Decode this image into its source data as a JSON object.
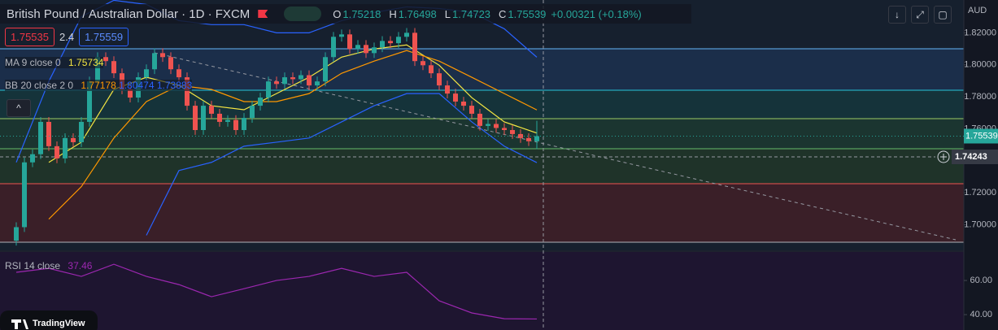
{
  "chart_data": {
    "type": "candlestick",
    "title": "British Pound / Australian Dollar · 1D · FXCM",
    "ohlc_labels": [
      "O",
      "H",
      "L",
      "C"
    ],
    "change": "+0.00321 (+0.18%)",
    "sell_price": 1.75535,
    "spread": 2.4,
    "buy_price": 1.75559,
    "currency": "AUD",
    "colors": {
      "up": "#26a69a",
      "down": "#ef5350"
    },
    "candles": {
      "open": [
        1.69,
        1.6985,
        1.739,
        1.7441,
        1.7643,
        1.7491,
        1.7415,
        1.7542,
        1.7516,
        1.7643,
        1.7896,
        1.8048,
        1.8023,
        1.7947,
        1.7846,
        1.7795,
        1.7922,
        1.7972,
        1.8073,
        1.8048,
        1.7972,
        1.7922,
        1.7744,
        1.7592,
        1.7744,
        1.7694,
        1.7643,
        1.7655,
        1.7592,
        1.7668,
        1.7744,
        1.7795,
        1.7896,
        1.788,
        1.7922,
        1.791,
        1.7935,
        1.7871,
        1.7896,
        1.8048,
        1.8175,
        1.819,
        1.8099,
        1.8124,
        1.8073,
        1.8109,
        1.8149,
        1.8135,
        1.8175,
        1.82,
        1.8023,
        1.7997,
        1.7947,
        1.7871,
        1.782,
        1.777,
        1.7744,
        1.7694,
        1.7618,
        1.763,
        1.7605,
        1.7592,
        1.7567,
        1.7542,
        1.75218
      ],
      "high": [
        1.7015,
        1.742,
        1.7471,
        1.7673,
        1.7673,
        1.7521,
        1.7572,
        1.7572,
        1.7673,
        1.7926,
        1.8078,
        1.8078,
        1.8053,
        1.7977,
        1.7876,
        1.7952,
        1.8002,
        1.8103,
        1.8103,
        1.8078,
        1.8002,
        1.7952,
        1.7774,
        1.7774,
        1.7774,
        1.7724,
        1.7685,
        1.7685,
        1.7698,
        1.7774,
        1.7825,
        1.7926,
        1.7926,
        1.7952,
        1.7952,
        1.7965,
        1.7965,
        1.7926,
        1.8078,
        1.8205,
        1.822,
        1.822,
        1.8154,
        1.8154,
        1.8139,
        1.8179,
        1.8179,
        1.8205,
        1.823,
        1.823,
        1.8053,
        1.8027,
        1.7977,
        1.7901,
        1.785,
        1.78,
        1.7774,
        1.7724,
        1.766,
        1.766,
        1.7635,
        1.7622,
        1.7597,
        1.7572,
        1.76498
      ],
      "low": [
        1.687,
        1.6955,
        1.736,
        1.7411,
        1.7461,
        1.7385,
        1.7385,
        1.7486,
        1.7486,
        1.7613,
        1.7866,
        1.7993,
        1.7917,
        1.7816,
        1.7765,
        1.7765,
        1.7892,
        1.7942,
        1.8018,
        1.7942,
        1.7892,
        1.7714,
        1.7562,
        1.7562,
        1.7664,
        1.7613,
        1.7613,
        1.7562,
        1.7562,
        1.7638,
        1.7714,
        1.7765,
        1.785,
        1.785,
        1.788,
        1.788,
        1.7841,
        1.7841,
        1.7866,
        1.8018,
        1.8145,
        1.8069,
        1.8069,
        1.8043,
        1.8043,
        1.8079,
        1.8105,
        1.8105,
        1.8145,
        1.7993,
        1.7967,
        1.7917,
        1.7841,
        1.779,
        1.774,
        1.7714,
        1.7664,
        1.7588,
        1.7588,
        1.7575,
        1.7562,
        1.7537,
        1.7512,
        1.7492,
        1.74723
      ],
      "close": [
        1.6985,
        1.739,
        1.7441,
        1.7643,
        1.7491,
        1.7415,
        1.7542,
        1.7516,
        1.7643,
        1.7896,
        1.8048,
        1.8023,
        1.7947,
        1.7846,
        1.7795,
        1.7922,
        1.7972,
        1.8073,
        1.8048,
        1.7972,
        1.7922,
        1.7744,
        1.7592,
        1.7744,
        1.7694,
        1.7643,
        1.7655,
        1.7592,
        1.7668,
        1.7744,
        1.7795,
        1.7896,
        1.788,
        1.7922,
        1.791,
        1.7935,
        1.7871,
        1.7896,
        1.8048,
        1.8175,
        1.819,
        1.8099,
        1.8124,
        1.8073,
        1.8109,
        1.8149,
        1.8135,
        1.8175,
        1.82,
        1.8023,
        1.7997,
        1.7947,
        1.7871,
        1.782,
        1.777,
        1.7744,
        1.7694,
        1.7618,
        1.763,
        1.7605,
        1.7592,
        1.7567,
        1.7542,
        1.7522,
        1.75539
      ]
    },
    "ylim": [
      1.684,
      1.8405
    ],
    "yticks": [
      {
        "value": 1.82,
        "label": "1.82000"
      },
      {
        "value": 1.8,
        "label": "1.80000"
      },
      {
        "value": 1.78,
        "label": "1.78000"
      },
      {
        "value": 1.76,
        "label": "1.76000"
      },
      {
        "value": 1.72,
        "label": "1.72000"
      },
      {
        "value": 1.7,
        "label": "1.70000"
      }
    ],
    "crosshair": 1.74243,
    "indicator_x": [
      0,
      4,
      8,
      12,
      16,
      20,
      24,
      28,
      32,
      36,
      40,
      44,
      48,
      52,
      56,
      60,
      64
    ],
    "indicators": [
      {
        "label": "MA 9 close 0",
        "series": [
          {
            "color": "#f5e642",
            "values": [
              null,
              1.739,
              1.7516,
              1.7846,
              1.7922,
              1.7871,
              1.7744,
              1.7719,
              1.782,
              1.7922,
              1.8048,
              1.8099,
              1.8124,
              1.7997,
              1.7795,
              1.7643,
              1.75734
            ]
          }
        ]
      },
      {
        "label": "BB 20 close 2 0",
        "series": [
          {
            "color": "#ff9800",
            "values": [
              null,
              1.7035,
              1.7238,
              1.7542,
              1.777,
              1.7871,
              1.7846,
              1.777,
              1.777,
              1.782,
              1.7947,
              1.8023,
              1.8089,
              1.8023,
              1.7922,
              1.782,
              1.77178
            ]
          },
          {
            "color": "#2962ff",
            "values": [
              1.739,
              1.7896,
              1.8301,
              1.8403,
              1.8377,
              1.8276,
              1.8251,
              1.8251,
              1.82,
              1.82,
              1.8276,
              1.8327,
              1.8362,
              1.8352,
              1.8327,
              1.8225,
              1.80474
            ]
          },
          {
            "color": "#2962ff",
            "values": [
              null,
              null,
              null,
              null,
              1.6934,
              1.7339,
              1.739,
              1.7491,
              1.7516,
              1.7542,
              1.7643,
              1.7744,
              1.782,
              1.782,
              1.7643,
              1.7491,
              1.73883
            ]
          }
        ]
      }
    ],
    "rsi": {
      "label": "RSI 14 close",
      "color": "#9c27b0",
      "values": [
        64.8,
        67.1,
        62.4,
        69.5,
        62.4,
        57.6,
        50.5,
        55.2,
        60.0,
        62.4,
        67.1,
        62.4,
        64.8,
        48.1,
        41.0,
        37.6,
        37.46
      ],
      "ylim": [
        31,
        76.7
      ],
      "yticks": [
        {
          "value": 60,
          "label": "60.00"
        },
        {
          "value": 40,
          "label": "40.00"
        }
      ]
    },
    "brand": "TradingView"
  }
}
